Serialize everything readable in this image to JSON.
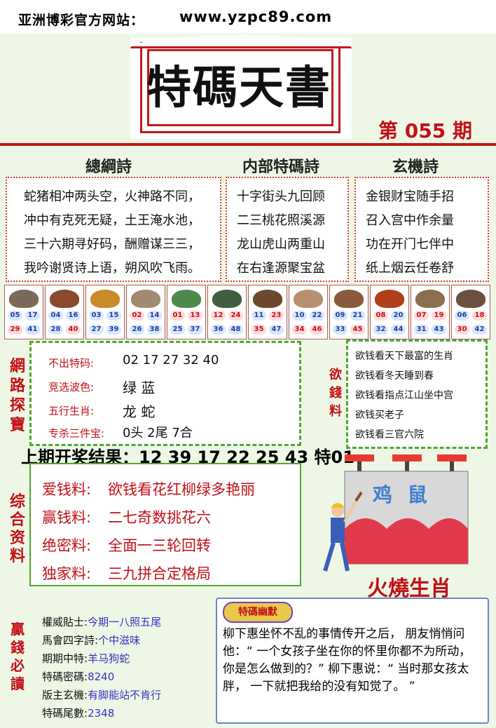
{
  "header": {
    "site_label": "亚洲博彩官方网站：",
    "site_url": "www.yzpc89.com"
  },
  "title": {
    "text": "特碼天書",
    "issue": "第 055 期"
  },
  "poems": {
    "left": {
      "heading": "總綱詩",
      "lines": [
        "蛇猪相冲两头空，火神路不同，",
        "冲中有克死无疑，土王淹水池，",
        "三十六期寻好码，酬赠谋三三，",
        "我吟谢贤诗上语，朔风吹飞雨。"
      ]
    },
    "middle": {
      "heading": "内部特碼詩",
      "lines": [
        "十字街头九回顾",
        "二三桃花照溪源",
        "龙山虎山两重山",
        "在右逢源聚宝盆"
      ]
    },
    "right": {
      "heading": "玄機詩",
      "lines": [
        "金银财宝随手招",
        "召入宫中作余量",
        "功在开门七伴中",
        "纸上烟云任卷舒"
      ]
    }
  },
  "zodiac": [
    {
      "animal": "rat",
      "color": "#7a6a5a",
      "n": [
        "05",
        "17",
        "29",
        "41"
      ]
    },
    {
      "animal": "ox",
      "color": "#8b4a2b",
      "n": [
        "04",
        "16",
        "28",
        "40"
      ]
    },
    {
      "animal": "tiger",
      "color": "#c98a2a",
      "n": [
        "03",
        "15",
        "27",
        "39"
      ]
    },
    {
      "animal": "rabbit",
      "color": "#a08a70",
      "n": [
        "02",
        "14",
        "26",
        "38"
      ]
    },
    {
      "animal": "dragon",
      "color": "#4e8a4e",
      "n": [
        "01",
        "13",
        "25",
        "37"
      ]
    },
    {
      "animal": "snake",
      "color": "#3f5f3f",
      "n": [
        "12",
        "24",
        "36",
        "48"
      ]
    },
    {
      "animal": "horse",
      "color": "#6b4a2e",
      "n": [
        "11",
        "23",
        "35",
        "47"
      ]
    },
    {
      "animal": "goat",
      "color": "#b89070",
      "n": [
        "10",
        "22",
        "34",
        "46"
      ]
    },
    {
      "animal": "monkey",
      "color": "#8a5a3a",
      "n": [
        "09",
        "21",
        "33",
        "45"
      ]
    },
    {
      "animal": "rooster",
      "color": "#b0401a",
      "n": [
        "08",
        "20",
        "32",
        "44"
      ]
    },
    {
      "animal": "dog",
      "color": "#8a7050",
      "n": [
        "07",
        "19",
        "31",
        "43"
      ]
    },
    {
      "animal": "pig",
      "color": "#6a5040",
      "n": [
        "06",
        "18",
        "30",
        "42"
      ]
    }
  ],
  "network": {
    "vertical": "網路探寶",
    "items": [
      {
        "label": "不出特码:",
        "value": "02 17 27 32 40"
      },
      {
        "label": "竞选波色:",
        "value": "绿  蓝"
      },
      {
        "label": "五行生肖:",
        "value": "龙  蛇"
      },
      {
        "label": "专杀三件宝:",
        "value": "0头   2尾   7合"
      }
    ]
  },
  "wish": {
    "vertical": "欲錢料",
    "lines": [
      "欲钱看天下最富的生肖",
      "欲钱看冬天睡到春",
      "欲钱看指点江山坐中宫",
      "欲钱买老子",
      "欲钱看三官六院"
    ]
  },
  "prev_result": "上期开奖结果：12 39 17 22 25 43 特01",
  "combo": {
    "vertical": "综合资料",
    "items": [
      {
        "label": "爱钱料:",
        "value": "欲钱看花红柳绿多艳丽"
      },
      {
        "label": "赢钱料:",
        "value": "二七奇数挑花六"
      },
      {
        "label": "绝密料:",
        "value": "全面一三轮回转"
      },
      {
        "label": "独家料:",
        "value": "三九拼合定格局"
      }
    ]
  },
  "billboard": {
    "text": "鸡  鼠",
    "caption": "火燒生肖"
  },
  "must_read": {
    "vertical": "贏錢必讀",
    "items": [
      {
        "label": "權威貼士:",
        "value": "今期一八照五尾"
      },
      {
        "label": "馬會四字詩:",
        "value": "个中滋味"
      },
      {
        "label": "期期中特:",
        "value": "羊马狗蛇"
      },
      {
        "label": "特碼密碼:",
        "value": "8240"
      },
      {
        "label": "版主玄機:",
        "value": "有脚能站不肯行"
      },
      {
        "label": "特碼尾數:",
        "value": "2348"
      }
    ]
  },
  "joke": {
    "badge": "特碼幽默",
    "text": "柳下惠坐怀不乱的事情传开之后， 朋友悄悄问他：“ 一个女孩子坐在你的怀里你都不为所动， 你是怎么做到的？” 柳下惠说：“ 当时那女孩太胖， 一下就把我给的没有知觉了。 ”"
  }
}
